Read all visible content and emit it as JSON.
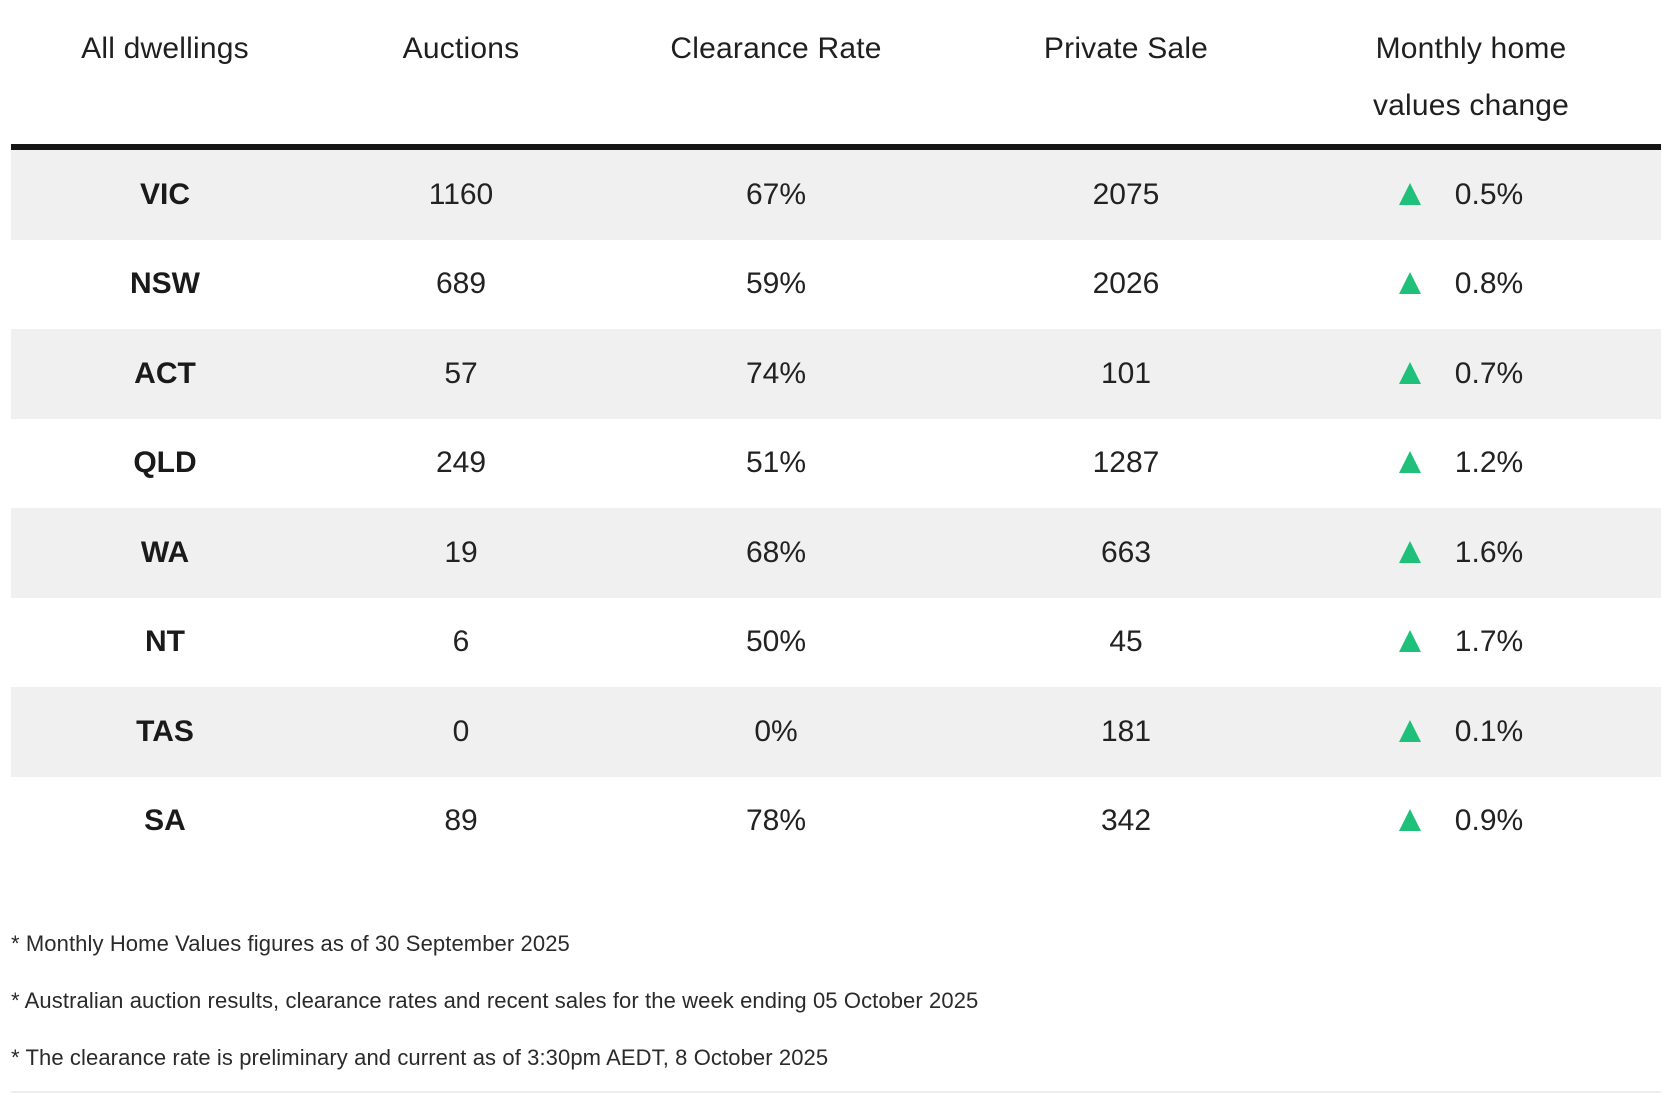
{
  "table": {
    "headers": [
      {
        "line1": "All dwellings",
        "line2": ""
      },
      {
        "line1": "Auctions",
        "line2": ""
      },
      {
        "line1": "Clearance Rate",
        "line2": ""
      },
      {
        "line1": "Private Sale",
        "line2": ""
      },
      {
        "line1": "Monthly home",
        "line2": "values change"
      }
    ],
    "rows": [
      {
        "state": "VIC",
        "auctions": "1160",
        "clearance_rate": "67%",
        "private_sale": "2075",
        "trend": "up",
        "monthly_change": "0.5%"
      },
      {
        "state": "NSW",
        "auctions": "689",
        "clearance_rate": "59%",
        "private_sale": "2026",
        "trend": "up",
        "monthly_change": "0.8%"
      },
      {
        "state": "ACT",
        "auctions": "57",
        "clearance_rate": "74%",
        "private_sale": "101",
        "trend": "up",
        "monthly_change": "0.7%"
      },
      {
        "state": "QLD",
        "auctions": "249",
        "clearance_rate": "51%",
        "private_sale": "1287",
        "trend": "up",
        "monthly_change": "1.2%"
      },
      {
        "state": "WA",
        "auctions": "19",
        "clearance_rate": "68%",
        "private_sale": "663",
        "trend": "up",
        "monthly_change": "1.6%"
      },
      {
        "state": "NT",
        "auctions": "6",
        "clearance_rate": "50%",
        "private_sale": "45",
        "trend": "up",
        "monthly_change": "1.7%"
      },
      {
        "state": "TAS",
        "auctions": "0",
        "clearance_rate": "0%",
        "private_sale": "181",
        "trend": "up",
        "monthly_change": "0.1%"
      },
      {
        "state": "SA",
        "auctions": "89",
        "clearance_rate": "78%",
        "private_sale": "342",
        "trend": "up",
        "monthly_change": "0.9%"
      }
    ]
  },
  "notes": [
    "* Monthly Home Values figures as of 30 September 2025",
    "* Australian auction results, clearance rates and recent sales for the week ending 05 October 2025",
    "* The clearance rate is preliminary and current as of 3:30pm AEDT, 8 October 2025"
  ],
  "colors": {
    "trend_up": "#1ec07a",
    "row_shade": "#f0f0f0",
    "header_rule": "#151515"
  },
  "icons": {
    "trend_up": "up-triangle-icon"
  }
}
